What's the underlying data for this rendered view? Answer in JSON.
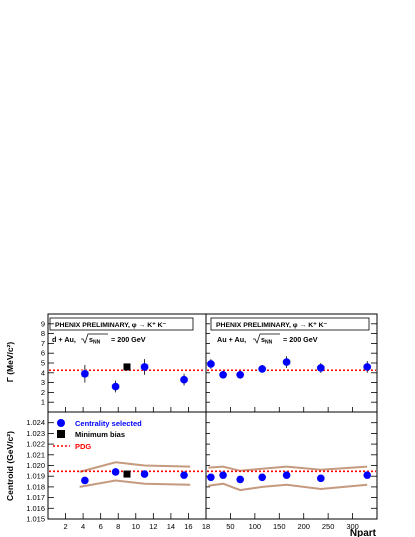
{
  "chart_data": [
    {
      "type": "scatter",
      "panel": "width-vs-ncoll",
      "banner": "PHENIX PRELIMINARY, φ → K⁺ K⁻",
      "system_label": "d + Au, √s_NN = 200 GeV",
      "system_prefix": "d + Au,",
      "system_energy": "= 200 GeV",
      "ylabel": "Γ (MeV/c²)",
      "ylim": [
        0,
        10
      ],
      "yticks": [
        1,
        2,
        3,
        4,
        5,
        6,
        7,
        8,
        9
      ],
      "xlim": [
        0,
        18
      ],
      "grid": false,
      "series": [
        {
          "name": "Centrality selected",
          "x": [
            4.2,
            7.7,
            11.0,
            15.5
          ],
          "y": [
            3.9,
            2.6,
            4.6,
            3.3
          ],
          "err": [
            0.9,
            0.6,
            0.8,
            0.6
          ]
        },
        {
          "name": "Minimum bias",
          "x": [
            9.0
          ],
          "y": [
            4.6
          ],
          "err": [
            0.2
          ]
        }
      ],
      "pdg": 4.26
    },
    {
      "type": "scatter",
      "panel": "width-vs-npart",
      "banner": "PHENIX PRELIMINARY, φ → K⁺ K⁻",
      "system_label": "Au + Au, √s_NN = 200 GeV",
      "system_prefix": "Au + Au,",
      "system_energy": "= 200 GeV",
      "ylim": [
        0,
        10
      ],
      "xlim": [
        0,
        350
      ],
      "grid": false,
      "series": [
        {
          "name": "Centrality selected",
          "x": [
            10,
            35,
            70,
            115,
            165,
            235,
            330
          ],
          "y": [
            4.9,
            3.8,
            3.8,
            4.4,
            5.1,
            4.5,
            4.6
          ],
          "err": [
            0.5,
            0.4,
            0.4,
            0.4,
            0.6,
            0.5,
            0.6
          ]
        }
      ],
      "pdg": 4.26
    },
    {
      "type": "scatter",
      "panel": "centroid-vs-ncoll",
      "ylabel": "Centroid (GeV/c²)",
      "ylim": [
        1.015,
        1.025
      ],
      "yticks": [
        1.015,
        1.016,
        1.017,
        1.018,
        1.019,
        1.02,
        1.021,
        1.022,
        1.023,
        1.024
      ],
      "xlim": [
        0,
        18
      ],
      "xticks": [
        2,
        4,
        6,
        8,
        10,
        12,
        14,
        16,
        18
      ],
      "grid": false,
      "series": [
        {
          "name": "Centrality selected",
          "x": [
            4.2,
            7.7,
            11.0,
            15.5
          ],
          "y": [
            1.0186,
            1.0194,
            1.0192,
            1.0191
          ]
        },
        {
          "name": "Minimum bias",
          "x": [
            9.0
          ],
          "y": [
            1.0192
          ]
        }
      ],
      "pdg": 1.01946,
      "band_upper": {
        "x": [
          3.6,
          7.7,
          11.0,
          16.2
        ],
        "y": [
          1.0194,
          1.0203,
          1.02,
          1.0199
        ]
      },
      "band_lower": {
        "x": [
          3.6,
          7.7,
          11.0,
          16.2
        ],
        "y": [
          1.018,
          1.0186,
          1.0183,
          1.0182
        ]
      }
    },
    {
      "type": "scatter",
      "panel": "centroid-vs-npart",
      "xlim": [
        0,
        350
      ],
      "xticks": [
        50,
        100,
        150,
        200,
        250,
        300
      ],
      "ylim": [
        1.015,
        1.025
      ],
      "grid": false,
      "series": [
        {
          "name": "Centrality selected",
          "x": [
            10,
            35,
            70,
            115,
            165,
            235,
            330
          ],
          "y": [
            1.0189,
            1.0191,
            1.0187,
            1.0189,
            1.0191,
            1.0188,
            1.0191
          ]
        }
      ],
      "pdg": 1.01946,
      "band_upper": {
        "x": [
          5,
          35,
          70,
          115,
          165,
          235,
          330
        ],
        "y": [
          1.0198,
          1.0199,
          1.0195,
          1.0197,
          1.0199,
          1.0196,
          1.0199
        ]
      },
      "band_lower": {
        "x": [
          5,
          35,
          70,
          115,
          165,
          235,
          330
        ],
        "y": [
          1.0181,
          1.0183,
          1.0177,
          1.018,
          1.0182,
          1.0178,
          1.0182
        ]
      }
    }
  ],
  "x_axis_label": "Npart",
  "legend": {
    "items": [
      {
        "label": "Centrality selected",
        "color": "#0000ff"
      },
      {
        "label": "Minimum bias",
        "color": "#000000"
      },
      {
        "label": "PDG",
        "color": "#ff0000"
      }
    ]
  },
  "colors": {
    "marker": "#0000ff",
    "minbias": "#000000",
    "pdg": "#ff0000",
    "band": "#c59a7e",
    "error_box": "#cfcfcf"
  }
}
